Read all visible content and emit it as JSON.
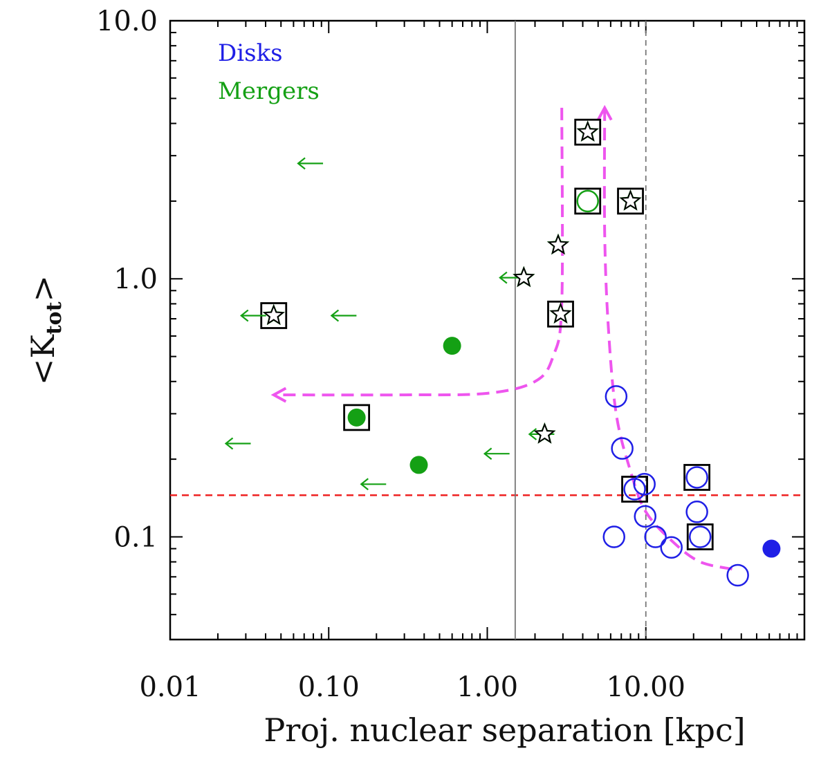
{
  "chart_data": {
    "type": "scatter",
    "xscale": "log",
    "yscale": "log",
    "xlim": [
      0.01,
      100
    ],
    "ylim": [
      0.04,
      10
    ],
    "xlabel": "Proj. nuclear separation [kpc]",
    "ylabel_main": "<K",
    "ylabel_sub": "tot",
    "ylabel_end": ">",
    "xticks": [
      {
        "value": 0.01,
        "label": "0.01"
      },
      {
        "value": 0.1,
        "label": "0.10"
      },
      {
        "value": 1,
        "label": "1.00"
      },
      {
        "value": 10,
        "label": "10.00"
      }
    ],
    "yticks": [
      {
        "value": 0.1,
        "label": "0.1"
      },
      {
        "value": 1,
        "label": "1.0"
      },
      {
        "value": 10,
        "label": "10.0"
      }
    ],
    "legend": [
      {
        "label": "Disks",
        "color": "#1f1fe6"
      },
      {
        "label": "Mergers",
        "color": "#14a014"
      }
    ],
    "reference_lines": {
      "horizontal_dashed": {
        "y": 0.145,
        "color": "#ee2222"
      },
      "vertical_solid": {
        "x": 1.5,
        "color": "#777777"
      },
      "vertical_dashed": {
        "x": 10,
        "color": "#777777"
      }
    },
    "series": [
      {
        "name": "Disks (open)",
        "color": "#1f1fe6",
        "marker": "open-circle",
        "points": [
          {
            "x": 6.5,
            "y": 0.35
          },
          {
            "x": 7.1,
            "y": 0.22
          },
          {
            "x": 8.5,
            "y": 0.153
          },
          {
            "x": 9.8,
            "y": 0.16
          },
          {
            "x": 9.9,
            "y": 0.12
          },
          {
            "x": 11.5,
            "y": 0.1
          },
          {
            "x": 6.3,
            "y": 0.1
          },
          {
            "x": 14.5,
            "y": 0.091
          },
          {
            "x": 21,
            "y": 0.17
          },
          {
            "x": 21,
            "y": 0.125
          },
          {
            "x": 22,
            "y": 0.1
          },
          {
            "x": 38,
            "y": 0.071
          }
        ]
      },
      {
        "name": "Disks (filled)",
        "color": "#1f1fe6",
        "marker": "filled-circle",
        "points": [
          {
            "x": 62,
            "y": 0.09
          }
        ]
      },
      {
        "name": "Mergers (filled)",
        "color": "#14a014",
        "marker": "filled-circle",
        "points": [
          {
            "x": 0.6,
            "y": 0.55
          },
          {
            "x": 0.15,
            "y": 0.29
          },
          {
            "x": 0.37,
            "y": 0.19
          }
        ]
      },
      {
        "name": "Mergers (open)",
        "color": "#14a014",
        "marker": "open-circle",
        "points": [
          {
            "x": 4.3,
            "y": 2.0
          }
        ]
      },
      {
        "name": "Mergers (stars)",
        "color": "#14a014",
        "marker": "star",
        "points": [
          {
            "x": 4.3,
            "y": 3.7
          },
          {
            "x": 8.0,
            "y": 2.0
          },
          {
            "x": 2.8,
            "y": 1.35
          },
          {
            "x": 2.9,
            "y": 0.73
          },
          {
            "x": 1.7,
            "y": 1.01
          },
          {
            "x": 0.045,
            "y": 0.72
          },
          {
            "x": 2.3,
            "y": 0.25
          }
        ]
      },
      {
        "name": "Upper limits",
        "color": "#14a014",
        "marker": "left-arrow",
        "points": [
          {
            "x": 0.08,
            "y": 2.8
          },
          {
            "x": 0.035,
            "y": 0.72
          },
          {
            "x": 0.13,
            "y": 0.72
          },
          {
            "x": 0.028,
            "y": 0.23
          },
          {
            "x": 0.2,
            "y": 0.16
          },
          {
            "x": 1.2,
            "y": 0.21
          },
          {
            "x": 2.3,
            "y": 0.25
          },
          {
            "x": 1.5,
            "y": 1.01
          }
        ]
      },
      {
        "name": "Boxed objects",
        "color": "#000000",
        "marker": "open-square",
        "points": [
          {
            "x": 4.3,
            "y": 3.7
          },
          {
            "x": 4.3,
            "y": 2.0
          },
          {
            "x": 8.0,
            "y": 2.0
          },
          {
            "x": 2.9,
            "y": 0.73
          },
          {
            "x": 0.045,
            "y": 0.72
          },
          {
            "x": 0.15,
            "y": 0.29
          },
          {
            "x": 8.5,
            "y": 0.153
          },
          {
            "x": 21,
            "y": 0.17
          },
          {
            "x": 22,
            "y": 0.1
          }
        ]
      }
    ],
    "trend_curves": {
      "color": "#ee55ee",
      "curves": [
        {
          "name": "merger-track",
          "points": [
            [
              2.95,
              4.6
            ],
            [
              2.95,
              0.8
            ],
            [
              2.6,
              0.5
            ],
            [
              2.0,
              0.4
            ],
            [
              1.0,
              0.36
            ],
            [
              0.3,
              0.355
            ],
            [
              0.045,
              0.355
            ]
          ],
          "arrow": "end"
        },
        {
          "name": "disk-track",
          "points": [
            [
              35,
              0.075
            ],
            [
              22,
              0.08
            ],
            [
              15,
              0.095
            ],
            [
              10,
              0.125
            ],
            [
              8.0,
              0.18
            ],
            [
              6.5,
              0.3
            ],
            [
              5.8,
              0.65
            ],
            [
              5.5,
              1.5
            ],
            [
              5.5,
              4.6
            ]
          ],
          "arrow": "end"
        }
      ]
    }
  }
}
